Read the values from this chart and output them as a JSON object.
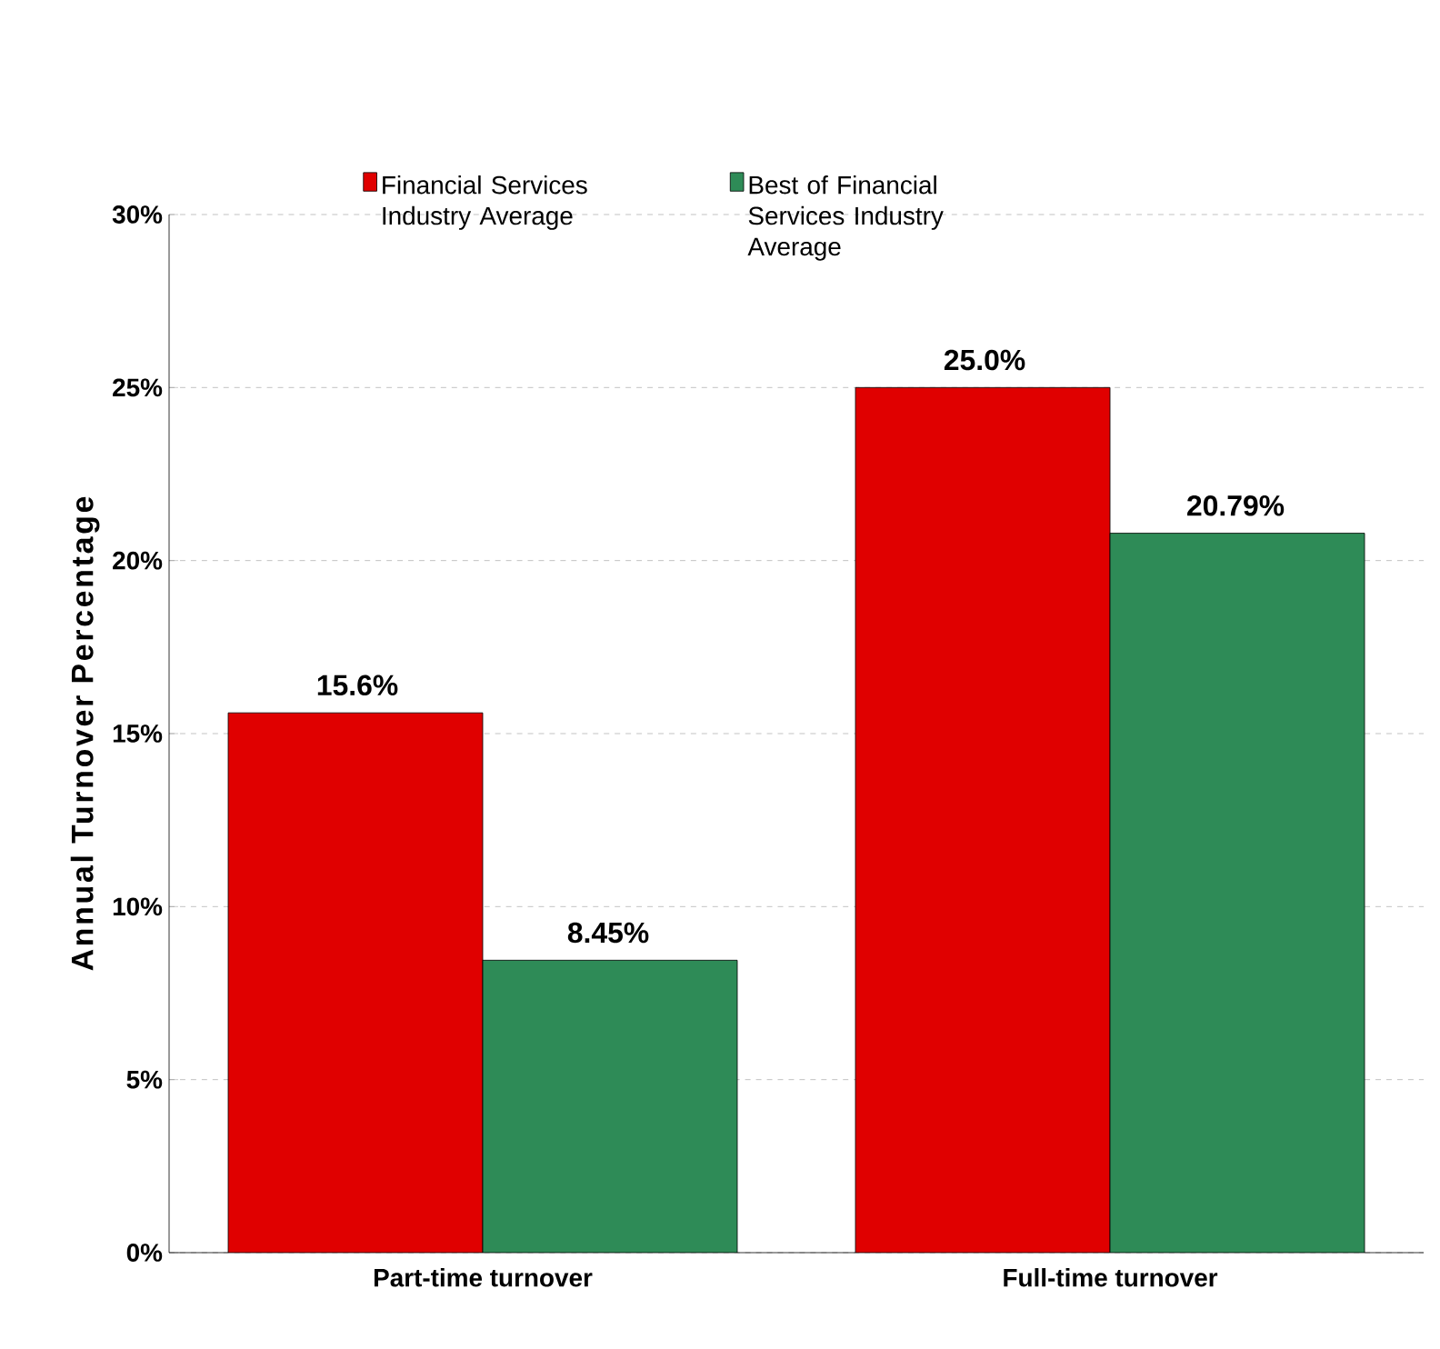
{
  "chart_data": {
    "type": "bar",
    "ylabel": "Annual Turnover Percentage",
    "categories": [
      "Part-time turnover",
      "Full-time turnover"
    ],
    "series": [
      {
        "name": "Financial Services Industry Average",
        "color": "#e00000",
        "values": [
          15.6,
          25.0
        ],
        "value_labels": [
          "15.6%",
          "25.0%"
        ]
      },
      {
        "name": "Best of Financial Services Industry Average",
        "color": "#2e8b57",
        "values": [
          8.45,
          20.79
        ],
        "value_labels": [
          "8.45%",
          "20.79%"
        ]
      }
    ],
    "ylim": [
      0,
      30
    ],
    "yticks": [
      {
        "value": 0,
        "label": "0%"
      },
      {
        "value": 5,
        "label": "5%"
      },
      {
        "value": 10,
        "label": "10%"
      },
      {
        "value": 15,
        "label": "15%"
      },
      {
        "value": 20,
        "label": "20%"
      },
      {
        "value": 25,
        "label": "25%"
      },
      {
        "value": 30,
        "label": "30%"
      }
    ],
    "grid": "y",
    "legend": "top"
  }
}
